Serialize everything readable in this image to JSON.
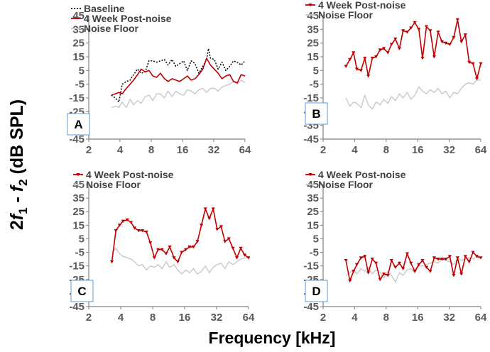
{
  "figure": {
    "ylabel": {
      "a": "2",
      "f1": "f",
      "s1": "1",
      "minus": " - ",
      "f2": "f",
      "s2": "2",
      "unit": " (dB SPL)"
    },
    "xlabel": "Frequency [kHz]"
  },
  "colors": {
    "post_noise": "#c00000",
    "baseline": "#000000",
    "noise_floor": "#c8c8c8",
    "label_box": "#5b9bd5"
  },
  "chart_data": [
    {
      "panel": "A",
      "type": "line",
      "xscale": "log2",
      "xlim": [
        2,
        64
      ],
      "ylim": [
        -45,
        45
      ],
      "xticks": [
        2,
        4,
        8,
        16,
        32,
        64
      ],
      "yticks": [
        -45,
        -35,
        -25,
        -15,
        -5,
        5,
        15,
        25,
        35,
        45
      ],
      "xlabel": "Frequency [kHz]",
      "ylabel": "2f1 - f2 (dB SPL)",
      "legend": [
        "Baseline",
        "4 Week Post-noise",
        "Noise Floor"
      ],
      "series": [
        {
          "name": "Baseline",
          "style": "dotted",
          "markers": false,
          "x": [
            3.3,
            3.6,
            3.9,
            4.2,
            4.6,
            5.0,
            5.4,
            5.9,
            6.4,
            7.0,
            7.6,
            8.3,
            9.0,
            9.8,
            10.7,
            11.6,
            12.7,
            13.8,
            15.0,
            16.4,
            17.8,
            19.4,
            21.1,
            23.0,
            25.1,
            27.3,
            28.5,
            29.7,
            32.4,
            35.3,
            38.4,
            41.8,
            45.6,
            49.6,
            54.0,
            58.8,
            64
          ],
          "y": [
            -13,
            -15,
            -18,
            -5,
            -3,
            -2,
            2,
            6,
            3,
            4,
            12,
            12,
            11,
            12,
            13,
            9,
            13,
            8,
            10,
            12,
            5,
            12,
            10,
            3,
            8,
            13,
            21,
            14,
            13,
            6,
            11,
            5,
            8,
            12,
            11,
            9,
            12
          ]
        },
        {
          "name": "4 Week Post-noise",
          "style": "solid",
          "markers": false,
          "x": [
            3.3,
            3.6,
            3.9,
            4.2,
            4.6,
            5.0,
            5.4,
            5.9,
            6.4,
            7.0,
            7.6,
            8.3,
            9.0,
            9.8,
            10.7,
            11.6,
            12.7,
            13.8,
            15.0,
            16.4,
            17.8,
            19.4,
            21.1,
            23.0,
            25.1,
            27.3,
            29.7,
            32.4,
            35.3,
            38.4,
            41.8,
            45.6,
            49.6,
            54.0,
            58.8,
            64
          ],
          "y": [
            -13,
            -12,
            -11,
            -12,
            -8,
            -5,
            -2,
            2,
            6,
            4,
            5,
            1,
            0,
            3,
            -1,
            -3,
            -1,
            -2,
            -3,
            -1,
            1,
            -2,
            -1,
            2,
            6,
            14,
            9,
            6,
            3,
            -1,
            1,
            2,
            -3,
            -4,
            2,
            1
          ]
        },
        {
          "name": "Noise Floor",
          "style": "solid",
          "markers": false,
          "x": [
            3.3,
            3.6,
            3.9,
            4.2,
            4.6,
            5.0,
            5.4,
            5.9,
            6.4,
            7.0,
            7.6,
            8.3,
            9.0,
            9.8,
            10.7,
            11.6,
            12.7,
            13.8,
            15.0,
            16.4,
            17.8,
            19.4,
            21.1,
            23.0,
            25.1,
            27.3,
            29.7,
            32.4,
            35.3,
            38.4,
            41.8,
            45.6,
            49.6,
            54.0,
            58.8,
            64
          ],
          "y": [
            -22,
            -21,
            -22,
            -18,
            -22,
            -16,
            -20,
            -17,
            -19,
            -14,
            -13,
            -17,
            -12,
            -12,
            -15,
            -10,
            -14,
            -10,
            -12,
            -13,
            -9,
            -10,
            -12,
            -9,
            -8,
            -11,
            -8,
            -8,
            -10,
            -7,
            -6,
            -5,
            -3,
            -5,
            -2,
            -4
          ]
        }
      ]
    },
    {
      "panel": "B",
      "type": "line",
      "xscale": "log2",
      "xlim": [
        2,
        64
      ],
      "ylim": [
        -45,
        45
      ],
      "xticks": [
        2,
        4,
        8,
        16,
        32,
        64
      ],
      "yticks": [
        -45,
        -35,
        -25,
        -15,
        -5,
        5,
        15,
        25,
        35,
        45
      ],
      "legend": [
        "4 Week Post-noise",
        "Noise Floor"
      ],
      "series": [
        {
          "name": "4 Week Post-noise",
          "style": "solid",
          "markers": true,
          "x": [
            3.3,
            3.6,
            3.9,
            4.2,
            4.6,
            5.0,
            5.4,
            5.9,
            6.4,
            7.0,
            7.6,
            8.3,
            9.0,
            9.8,
            10.7,
            11.6,
            12.7,
            13.8,
            15.0,
            16.4,
            17.8,
            19.4,
            21.1,
            23.0,
            25.1,
            27.3,
            29.7,
            32.4,
            35.3,
            38.4,
            41.8,
            45.6,
            49.6,
            54.0,
            58.8,
            64
          ],
          "y": [
            8,
            13,
            18,
            6,
            5,
            14,
            1,
            14,
            15,
            20,
            21,
            18,
            24,
            28,
            21,
            34,
            33,
            36,
            40,
            35,
            14,
            37,
            34,
            15,
            33,
            26,
            25,
            24,
            29,
            42,
            26,
            31,
            11,
            10,
            -1,
            10
          ]
        },
        {
          "name": "Noise Floor",
          "style": "solid",
          "markers": false,
          "x": [
            3.3,
            3.6,
            3.9,
            4.2,
            4.6,
            5.0,
            5.4,
            5.9,
            6.4,
            7.0,
            7.6,
            8.3,
            9.0,
            9.8,
            10.7,
            11.6,
            12.7,
            13.8,
            15.0,
            16.4,
            17.8,
            19.4,
            21.1,
            23.0,
            25.1,
            27.3,
            29.7,
            32.4,
            35.3,
            38.4,
            41.8,
            45.6,
            49.6,
            54.0,
            58.8,
            64
          ],
          "y": [
            -15,
            -21,
            -18,
            -19,
            -22,
            -13,
            -20,
            -23,
            -18,
            -20,
            -16,
            -19,
            -14,
            -17,
            -12,
            -15,
            -11,
            -16,
            -13,
            -7,
            -10,
            -12,
            -9,
            -11,
            -8,
            -12,
            -10,
            -15,
            -11,
            -12,
            -8,
            -5,
            -4,
            -5,
            -2,
            -2
          ]
        }
      ]
    },
    {
      "panel": "C",
      "type": "line",
      "xscale": "log2",
      "xlim": [
        2,
        64
      ],
      "ylim": [
        -45,
        45
      ],
      "xticks": [
        2,
        4,
        8,
        16,
        32,
        64
      ],
      "yticks": [
        -45,
        -35,
        -25,
        -15,
        -5,
        5,
        15,
        25,
        35,
        45
      ],
      "legend": [
        "4 Week Post-noise",
        "Noise Floor"
      ],
      "series": [
        {
          "name": "4 Week Post-noise",
          "style": "solid",
          "markers": true,
          "x": [
            3.3,
            3.6,
            3.9,
            4.2,
            4.6,
            5.0,
            5.4,
            5.9,
            6.4,
            7.0,
            7.6,
            8.3,
            9.0,
            9.8,
            10.7,
            11.6,
            12.7,
            13.8,
            15.0,
            16.4,
            17.8,
            19.4,
            21.1,
            23.0,
            25.1,
            27.3,
            29.7,
            32.4,
            35.3,
            38.4,
            41.8,
            45.6,
            49.6,
            54.0,
            58.8,
            64
          ],
          "y": [
            -12,
            11,
            15,
            18,
            19,
            17,
            13,
            11,
            11,
            10,
            2,
            -9,
            -3,
            -3,
            -6,
            -1,
            -9,
            -12,
            -5,
            -3,
            -1,
            -1,
            3,
            15,
            27,
            20,
            27,
            12,
            14,
            3,
            5,
            -2,
            -9,
            -2,
            -7,
            -9
          ]
        },
        {
          "name": "Noise Floor",
          "style": "solid",
          "markers": false,
          "x": [
            3.3,
            3.6,
            3.9,
            4.2,
            4.6,
            5.0,
            5.4,
            5.9,
            6.4,
            7.0,
            7.6,
            8.3,
            9.0,
            9.8,
            10.7,
            11.6,
            12.7,
            13.8,
            15.0,
            16.4,
            17.8,
            19.4,
            21.1,
            23.0,
            25.1,
            27.3,
            29.7,
            32.4,
            35.3,
            38.4,
            41.8,
            45.6,
            49.6,
            54.0,
            58.8,
            64
          ],
          "y": [
            -5,
            -2,
            -6,
            -8,
            -9,
            -10,
            -12,
            -15,
            -14,
            -18,
            -15,
            -16,
            -14,
            -17,
            -12,
            -16,
            -14,
            -18,
            -21,
            -18,
            -20,
            -17,
            -21,
            -19,
            -15,
            -20,
            -16,
            -14,
            -13,
            -17,
            -12,
            -14,
            -12,
            -10,
            -9,
            -9
          ]
        }
      ]
    },
    {
      "panel": "D",
      "type": "line",
      "xscale": "log2",
      "xlim": [
        2,
        64
      ],
      "ylim": [
        -45,
        45
      ],
      "xticks": [
        2,
        4,
        8,
        16,
        32,
        64
      ],
      "yticks": [
        -45,
        -35,
        -25,
        -15,
        -5,
        5,
        15,
        25,
        35,
        45
      ],
      "legend": [
        "4 Week Post-noise",
        "Noise Floor"
      ],
      "series": [
        {
          "name": "4 Week Post-noise",
          "style": "solid",
          "markers": true,
          "x": [
            3.3,
            3.6,
            3.9,
            4.2,
            4.6,
            5.0,
            5.4,
            5.9,
            6.4,
            7.0,
            7.6,
            8.3,
            9.0,
            9.8,
            10.7,
            11.6,
            12.7,
            13.8,
            15.0,
            16.4,
            17.8,
            19.4,
            21.1,
            23.0,
            25.1,
            27.3,
            29.7,
            32.4,
            35.3,
            38.4,
            41.8,
            45.6,
            49.6,
            54.0,
            58.8,
            64
          ],
          "y": [
            -11,
            -26,
            -19,
            -14,
            -9,
            -8,
            -20,
            -10,
            -13,
            -25,
            -21,
            -22,
            -11,
            -16,
            -13,
            -17,
            -6,
            -13,
            -19,
            -14,
            -11,
            -16,
            -19,
            -9,
            -10,
            -10,
            -10,
            -8,
            -22,
            -9,
            -21,
            -8,
            -12,
            -5,
            -8,
            -9
          ]
        },
        {
          "name": "Noise Floor",
          "style": "solid",
          "markers": false,
          "x": [
            3.3,
            3.6,
            3.9,
            4.2,
            4.6,
            5.0,
            5.4,
            5.9,
            6.4,
            7.0,
            7.6,
            8.3,
            9.0,
            9.8,
            10.7,
            11.6,
            12.7,
            13.8,
            15.0,
            16.4,
            17.8,
            19.4,
            21.1,
            23.0,
            25.1,
            27.3,
            29.7,
            32.4,
            35.3,
            38.4,
            41.8,
            45.6,
            49.6,
            54.0,
            58.8,
            64
          ],
          "y": [
            -22,
            -20,
            -18,
            -21,
            -17,
            -19,
            -16,
            -21,
            -18,
            -20,
            -24,
            -19,
            -22,
            -27,
            -20,
            -22,
            -18,
            -17,
            -20,
            -15,
            -15,
            -14,
            -13,
            -12,
            -13,
            -10,
            -11,
            -12,
            -14,
            -9,
            -11,
            -10,
            -9,
            -10,
            -8,
            -9
          ]
        }
      ]
    }
  ]
}
